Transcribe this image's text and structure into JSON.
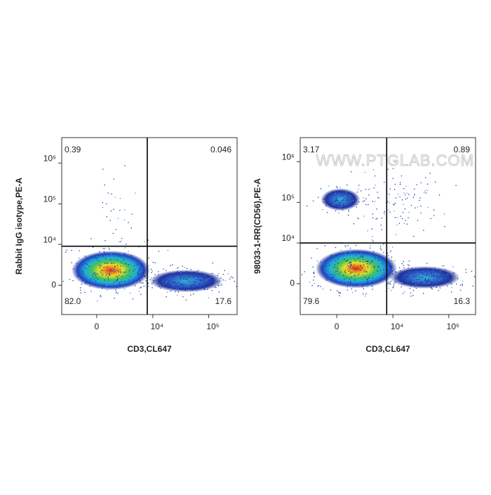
{
  "chart_data": [
    {
      "type": "flow-quadrant",
      "x_label": "CD3,CL647",
      "y_label": "Rabbit IgG isotype,PE-A",
      "xlim": [
        -4000,
        320000
      ],
      "ylim": [
        -5100,
        4200000
      ],
      "xticks": [
        0,
        {
          "value": 10000,
          "label": "10⁴"
        },
        {
          "value": 100000,
          "label": "10⁵"
        }
      ],
      "yticks": [
        0,
        {
          "value": 10000,
          "label": "10⁴"
        },
        {
          "value": 100000,
          "label": "10⁵"
        },
        {
          "value": 1000000,
          "label": "10⁶"
        }
      ],
      "gate": {
        "x": 7900,
        "y": 9000
      },
      "quadrants": {
        "values": [
          0.39,
          0.046,
          82.0,
          17.6
        ],
        "value_labels": [
          "0.39",
          "0.046",
          "82.0",
          "17.6"
        ]
      }
    },
    {
      "type": "flow-quadrant",
      "x_label": "CD3,CL647",
      "y_label": "98033-1-RR(CD56),PE-A",
      "watermark": "WWW.PTGLAB.COM",
      "xlim": [
        -4300,
        300000
      ],
      "ylim": [
        -5600,
        3900000
      ],
      "xticks": [
        0,
        {
          "value": 10000,
          "label": "10⁴"
        },
        {
          "value": 100000,
          "label": "10⁵"
        }
      ],
      "yticks": [
        0,
        {
          "value": 10000,
          "label": "10⁴"
        },
        {
          "value": 100000,
          "label": "10⁵"
        },
        {
          "value": 1000000,
          "label": "10⁶"
        }
      ],
      "gate": {
        "x": 7700,
        "y": 10000
      },
      "quadrants": {
        "values": [
          3.17,
          0.89,
          79.6,
          16.3
        ],
        "value_labels": [
          "3.17",
          "0.89",
          "79.6",
          "16.3"
        ]
      }
    }
  ]
}
